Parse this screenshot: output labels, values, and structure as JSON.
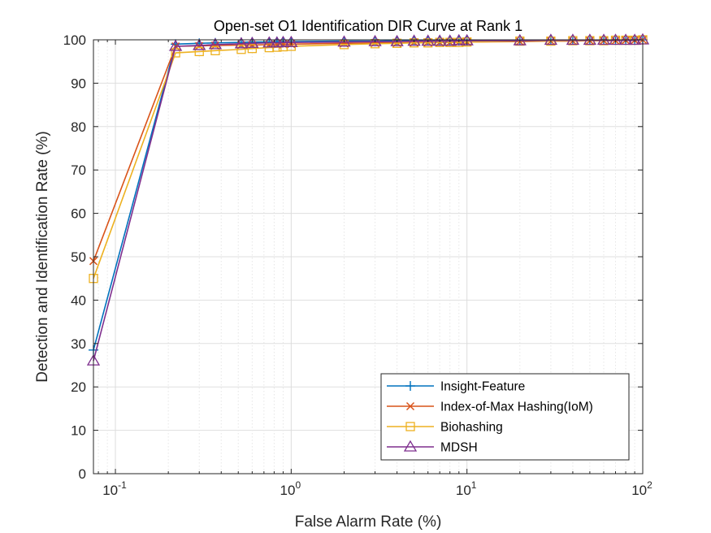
{
  "chart_data": {
    "type": "line",
    "title": "Open-set O1 Identification DIR Curve at Rank 1",
    "xlabel": "False Alarm Rate (%)",
    "ylabel": "Detection and Identification Rate (%)",
    "xscale": "log",
    "xlim": [
      0.075,
      100
    ],
    "ylim": [
      0,
      100
    ],
    "x_ticks": [
      {
        "base": "10",
        "exp": "-1"
      },
      {
        "base": "10",
        "exp": "0"
      },
      {
        "base": "10",
        "exp": "1"
      },
      {
        "base": "10",
        "exp": "2"
      }
    ],
    "y_ticks": [
      "0",
      "10",
      "20",
      "30",
      "40",
      "50",
      "60",
      "70",
      "80",
      "90",
      "100"
    ],
    "grid": true,
    "legend_position": "bottom-right",
    "series": [
      {
        "name": "Insight-Feature",
        "color": "#0072BD",
        "marker": "plus",
        "points": [
          [
            0.075,
            28.5
          ],
          [
            0.22,
            99.0
          ],
          [
            0.3,
            99.2
          ],
          [
            0.37,
            99.3
          ],
          [
            0.52,
            99.4
          ],
          [
            0.6,
            99.5
          ],
          [
            0.75,
            99.5
          ],
          [
            0.83,
            99.6
          ],
          [
            0.9,
            99.6
          ],
          [
            1.0,
            99.6
          ],
          [
            2.0,
            99.7
          ],
          [
            3.0,
            99.7
          ],
          [
            4.0,
            99.8
          ],
          [
            5.0,
            99.8
          ],
          [
            6.0,
            99.8
          ],
          [
            7.0,
            99.8
          ],
          [
            8.0,
            99.8
          ],
          [
            9.0,
            99.8
          ],
          [
            10.0,
            99.8
          ],
          [
            20.0,
            99.9
          ],
          [
            30.0,
            99.9
          ],
          [
            40.0,
            99.9
          ],
          [
            50.0,
            99.9
          ],
          [
            60.0,
            99.9
          ],
          [
            70.0,
            99.9
          ],
          [
            80.0,
            99.9
          ],
          [
            90.0,
            99.9
          ],
          [
            100.0,
            100.0
          ]
        ]
      },
      {
        "name": "Index-of-Max Hashing(IoM)",
        "color": "#D95319",
        "marker": "x",
        "points": [
          [
            0.075,
            49.0
          ],
          [
            0.22,
            98.5
          ],
          [
            0.3,
            98.6
          ],
          [
            0.37,
            98.7
          ],
          [
            0.52,
            98.8
          ],
          [
            0.6,
            98.8
          ],
          [
            0.75,
            98.9
          ],
          [
            0.83,
            98.9
          ],
          [
            0.9,
            99.0
          ],
          [
            1.0,
            99.0
          ],
          [
            2.0,
            99.2
          ],
          [
            3.0,
            99.3
          ],
          [
            4.0,
            99.3
          ],
          [
            5.0,
            99.4
          ],
          [
            6.0,
            99.4
          ],
          [
            7.0,
            99.4
          ],
          [
            8.0,
            99.4
          ],
          [
            9.0,
            99.5
          ],
          [
            10.0,
            99.5
          ],
          [
            20.0,
            99.6
          ],
          [
            30.0,
            99.7
          ],
          [
            40.0,
            99.7
          ],
          [
            50.0,
            99.8
          ],
          [
            60.0,
            99.8
          ],
          [
            70.0,
            99.8
          ],
          [
            80.0,
            99.9
          ],
          [
            90.0,
            99.9
          ],
          [
            100.0,
            100.0
          ]
        ]
      },
      {
        "name": "Biohashing",
        "color": "#EDB120",
        "marker": "square",
        "points": [
          [
            0.075,
            45.0
          ],
          [
            0.22,
            97.0
          ],
          [
            0.3,
            97.3
          ],
          [
            0.37,
            97.5
          ],
          [
            0.52,
            97.8
          ],
          [
            0.6,
            98.0
          ],
          [
            0.75,
            98.2
          ],
          [
            0.83,
            98.3
          ],
          [
            0.9,
            98.4
          ],
          [
            1.0,
            98.5
          ],
          [
            2.0,
            98.9
          ],
          [
            3.0,
            99.1
          ],
          [
            4.0,
            99.2
          ],
          [
            5.0,
            99.3
          ],
          [
            6.0,
            99.3
          ],
          [
            7.0,
            99.4
          ],
          [
            8.0,
            99.4
          ],
          [
            9.0,
            99.4
          ],
          [
            10.0,
            99.5
          ],
          [
            20.0,
            99.7
          ],
          [
            30.0,
            99.7
          ],
          [
            40.0,
            99.8
          ],
          [
            50.0,
            99.8
          ],
          [
            60.0,
            99.8
          ],
          [
            70.0,
            99.9
          ],
          [
            80.0,
            99.9
          ],
          [
            90.0,
            99.9
          ],
          [
            100.0,
            100.0
          ]
        ]
      },
      {
        "name": "MDSH",
        "color": "#7E2F8E",
        "marker": "triangle",
        "points": [
          [
            0.075,
            26.0
          ],
          [
            0.22,
            98.5
          ],
          [
            0.3,
            98.7
          ],
          [
            0.37,
            98.9
          ],
          [
            0.52,
            99.1
          ],
          [
            0.6,
            99.2
          ],
          [
            0.75,
            99.3
          ],
          [
            0.83,
            99.3
          ],
          [
            0.9,
            99.4
          ],
          [
            1.0,
            99.4
          ],
          [
            2.0,
            99.5
          ],
          [
            3.0,
            99.6
          ],
          [
            4.0,
            99.6
          ],
          [
            5.0,
            99.7
          ],
          [
            6.0,
            99.7
          ],
          [
            7.0,
            99.7
          ],
          [
            8.0,
            99.7
          ],
          [
            9.0,
            99.8
          ],
          [
            10.0,
            99.8
          ],
          [
            20.0,
            99.8
          ],
          [
            30.0,
            99.9
          ],
          [
            40.0,
            99.9
          ],
          [
            50.0,
            99.9
          ],
          [
            60.0,
            99.9
          ],
          [
            70.0,
            99.9
          ],
          [
            80.0,
            99.9
          ],
          [
            90.0,
            99.9
          ],
          [
            100.0,
            100.0
          ]
        ]
      }
    ]
  }
}
